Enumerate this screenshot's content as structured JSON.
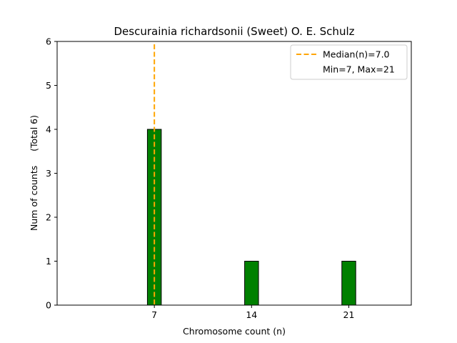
{
  "chart_data": {
    "type": "bar",
    "title": "Descurainia richardsonii (Sweet) O. E. Schulz",
    "xlabel": "Chromosome count (n)",
    "ylabel": "Num of counts     (Total 6)",
    "x": [
      7,
      14,
      21
    ],
    "values": [
      4,
      1,
      1
    ],
    "xticks": [
      7,
      14,
      21
    ],
    "yticks": [
      0,
      1,
      2,
      3,
      4,
      5,
      6
    ],
    "xlim": [
      0,
      25.5
    ],
    "ylim": [
      0,
      6
    ],
    "bar_width": 1,
    "bar_color": "#008000",
    "bar_edge_color": "#000000",
    "median": {
      "value": 7,
      "label": "Median(n)=7.0",
      "color": "#FFA500"
    },
    "legend": {
      "placement": "top-right",
      "entries": [
        "Median(n)=7.0",
        "Min=7, Max=21"
      ]
    },
    "grid": false
  }
}
